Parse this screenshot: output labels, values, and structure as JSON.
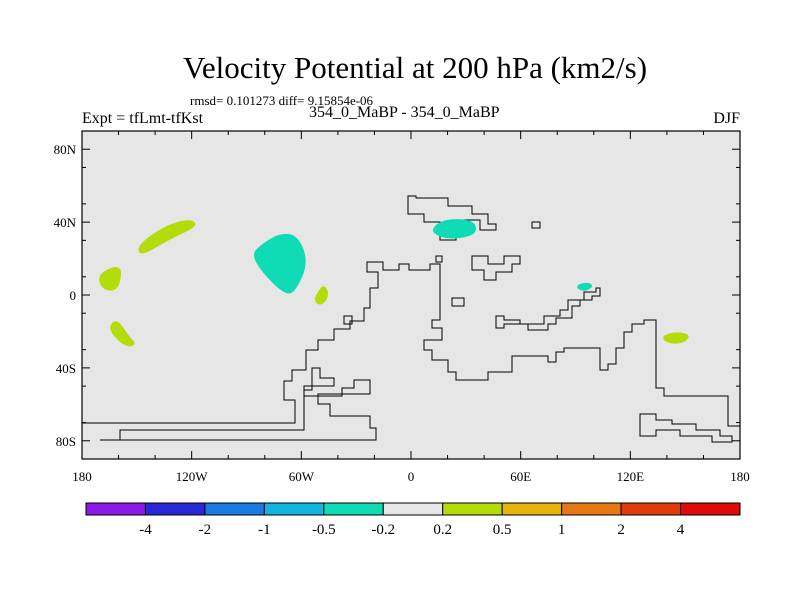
{
  "chart_data": {
    "type": "heatmap",
    "title": "Velocity Potential at 200 hPa (km2/s)",
    "stats": "rmsd= 0.101273 diff= 9.15854e-06",
    "left_label": "Expt = tfLmt-tfKst",
    "center_label": "354_0_MaBP - 354_0_MaBP",
    "right_label": "DJF",
    "projection": "cylindrical equidistant",
    "xlim": [
      -180,
      180
    ],
    "ylim": [
      -90,
      90
    ],
    "x_ticks": [
      {
        "value": -180,
        "label": "180"
      },
      {
        "value": -120,
        "label": "120W"
      },
      {
        "value": -60,
        "label": "60W"
      },
      {
        "value": 0,
        "label": "0"
      },
      {
        "value": 60,
        "label": "60E"
      },
      {
        "value": 120,
        "label": "120E"
      },
      {
        "value": 180,
        "label": "180"
      }
    ],
    "y_ticks": [
      {
        "value": 80,
        "label": "80N"
      },
      {
        "value": 40,
        "label": "40N"
      },
      {
        "value": 0,
        "label": "0"
      },
      {
        "value": -40,
        "label": "40S"
      },
      {
        "value": -80,
        "label": "80S"
      }
    ],
    "colorbar": {
      "levels": [
        "-4",
        "-2",
        "-1",
        "-0.5",
        "-0.2",
        "0.2",
        "0.5",
        "1",
        "2",
        "4"
      ],
      "colors": [
        "#8c1ae6",
        "#2828d8",
        "#1a7ae0",
        "#12b4e0",
        "#0fdcb4",
        "#e6e6e6",
        "#b4dc0a",
        "#e6b40a",
        "#e67814",
        "#e03c0a",
        "#e00a0a"
      ]
    },
    "anomaly_regions": [
      {
        "name": "nw-pacific-positive",
        "bin": "0.2 to 0.5",
        "color": "#b4dc0a",
        "lon": -135,
        "lat": 32
      },
      {
        "name": "w-pacific-positive",
        "bin": "0.2 to 0.5",
        "color": "#b4dc0a",
        "lon": -163,
        "lat": 9
      },
      {
        "name": "sw-pacific-positive",
        "bin": "0.2 to 0.5",
        "color": "#b4dc0a",
        "lon": -159,
        "lat": -22
      },
      {
        "name": "e-pacific-negative",
        "bin": "-0.5 to -0.2",
        "color": "#0fdcb4",
        "lon": -69,
        "lat": 18
      },
      {
        "name": "n-atlantic-positive",
        "bin": "0.2 to 0.5",
        "color": "#b4dc0a",
        "lon": -49,
        "lat": 0
      },
      {
        "name": "e-europe-negative",
        "bin": "-0.5 to -0.2",
        "color": "#0fdcb4",
        "lon": 24,
        "lat": 37
      },
      {
        "name": "se-asia-negative",
        "bin": "-0.5 to -0.2",
        "color": "#0fdcb4",
        "lon": 96,
        "lat": 4
      },
      {
        "name": "s-pacific-positive",
        "bin": "0.2 to 0.5",
        "color": "#b4dc0a",
        "lon": 146,
        "lat": -24
      }
    ]
  }
}
